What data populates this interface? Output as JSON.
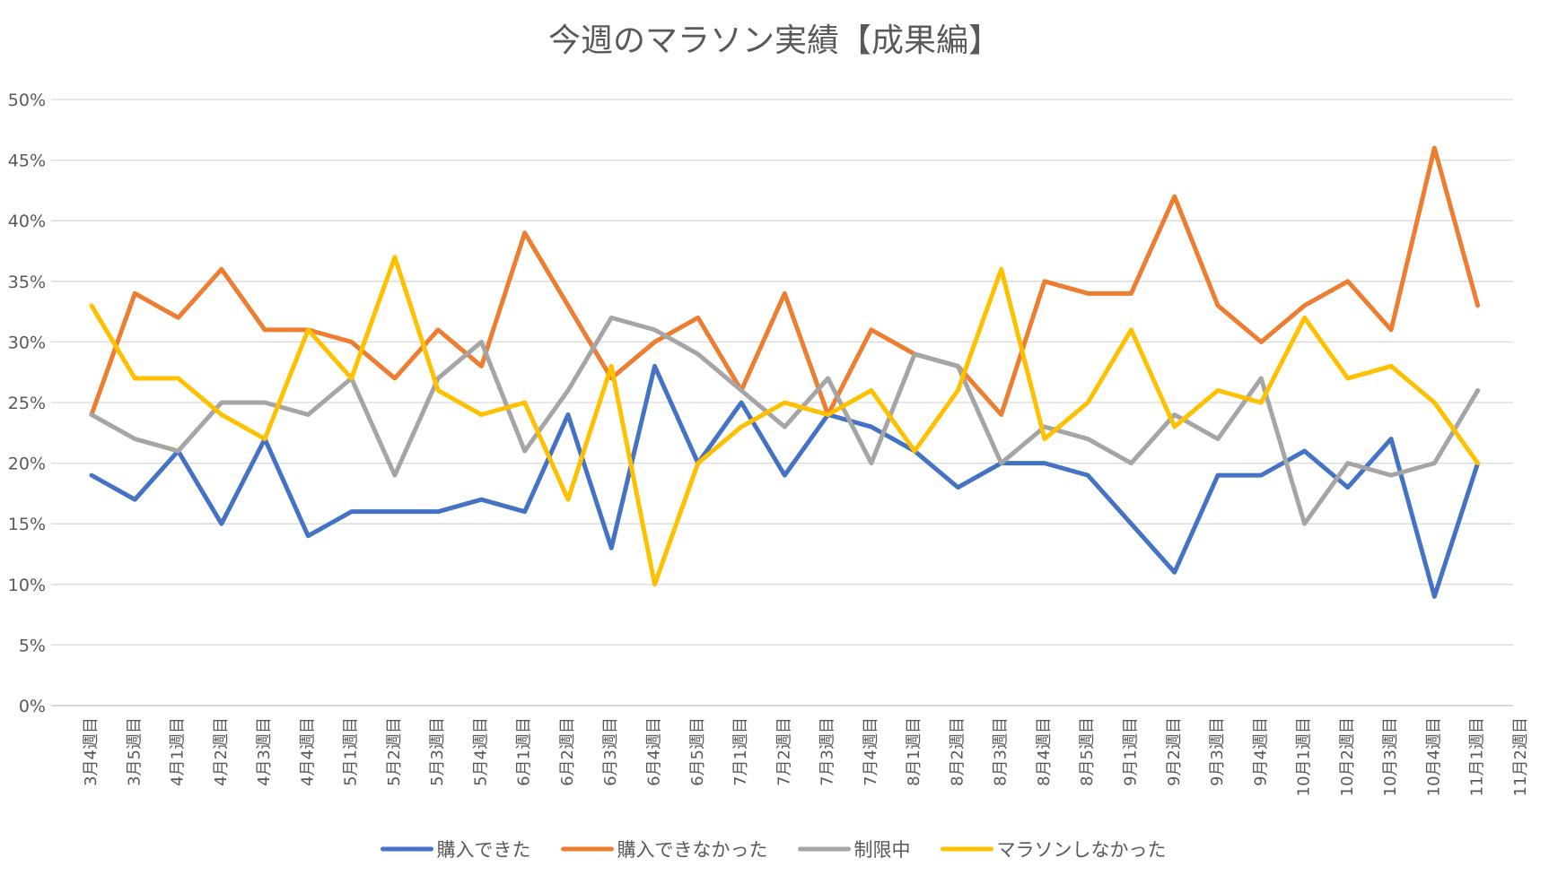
{
  "chart_data": {
    "type": "line",
    "title": "今週のマラソン実績【成果編】",
    "xlabel": "",
    "ylabel": "",
    "ylim": [
      0,
      50
    ],
    "yticks": [
      0,
      5,
      10,
      15,
      20,
      25,
      30,
      35,
      40,
      45,
      50
    ],
    "ytick_labels": [
      "0%",
      "5%",
      "10%",
      "15%",
      "20%",
      "25%",
      "30%",
      "35%",
      "40%",
      "45%",
      "50%"
    ],
    "grid": true,
    "legend_position": "bottom",
    "categories": [
      "3月4週目",
      "3月5週目",
      "4月1週目",
      "4月2週目",
      "4月3週目",
      "4月4週目",
      "5月1週目",
      "5月2週目",
      "5月3週目",
      "5月4週目",
      "6月1週目",
      "6月2週目",
      "6月3週目",
      "6月4週目",
      "6月5週目",
      "7月1週目",
      "7月2週目",
      "7月3週目",
      "7月4週目",
      "8月1週目",
      "8月2週目",
      "8月3週目",
      "8月4週目",
      "8月5週目",
      "9月1週目",
      "9月2週目",
      "9月3週目",
      "9月4週目",
      "10月1週目",
      "10月2週目",
      "10月3週目",
      "10月4週目",
      "11月1週目",
      "11月2週目"
    ],
    "series": [
      {
        "name": "購入できた",
        "color": "#4472c4",
        "values": [
          19,
          17,
          21,
          15,
          22,
          14,
          16,
          16,
          16,
          17,
          16,
          24,
          13,
          28,
          20,
          25,
          19,
          24,
          23,
          21,
          18,
          20,
          20,
          19,
          15,
          11,
          19,
          19,
          21,
          18,
          22,
          9,
          20,
          null
        ]
      },
      {
        "name": "購入できなかった",
        "color": "#ed7d31",
        "values": [
          24,
          34,
          32,
          36,
          31,
          31,
          30,
          27,
          31,
          28,
          39,
          33,
          27,
          30,
          32,
          26,
          34,
          24,
          31,
          29,
          28,
          24,
          35,
          34,
          34,
          42,
          33,
          30,
          33,
          35,
          31,
          46,
          33,
          null
        ]
      },
      {
        "name": "制限中",
        "color": "#a5a5a5",
        "values": [
          24,
          22,
          21,
          25,
          25,
          24,
          27,
          19,
          27,
          30,
          21,
          26,
          32,
          31,
          29,
          26,
          23,
          27,
          20,
          29,
          28,
          20,
          23,
          22,
          20,
          24,
          22,
          27,
          15,
          20,
          19,
          20,
          26,
          null
        ]
      },
      {
        "name": "マラソンしなかった",
        "color": "#ffc000",
        "values": [
          33,
          27,
          27,
          24,
          22,
          31,
          27,
          37,
          26,
          24,
          25,
          17,
          28,
          10,
          20,
          23,
          25,
          24,
          26,
          21,
          26,
          36,
          22,
          25,
          31,
          23,
          26,
          25,
          32,
          27,
          28,
          25,
          20,
          null
        ]
      }
    ]
  }
}
